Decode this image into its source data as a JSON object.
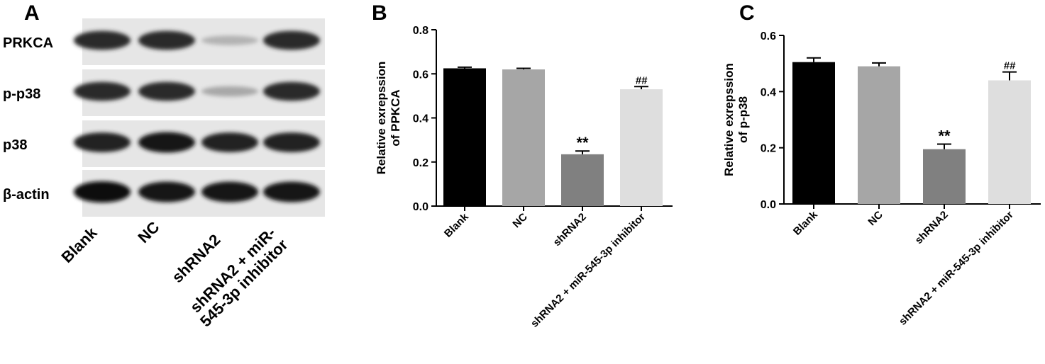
{
  "panels": {
    "a": "A",
    "b": "B",
    "c": "C"
  },
  "blot": {
    "row_labels": [
      "PRKCA",
      "p-p38",
      "p38",
      "β-actin"
    ],
    "lane_labels": [
      "Blank",
      "NC",
      "shRNA2",
      "shRNA2 + miR-\n545-3p inhibitor"
    ],
    "band_intensity": [
      [
        0.85,
        0.85,
        0.25,
        0.85
      ],
      [
        0.85,
        0.85,
        0.3,
        0.85
      ],
      [
        0.9,
        0.95,
        0.9,
        0.9
      ],
      [
        1.0,
        0.95,
        0.95,
        0.95
      ]
    ]
  },
  "chart_data": [
    {
      "type": "bar",
      "categories": [
        "Blank",
        "NC",
        "shRNA2",
        "shRNA2 + miR-545-3p inhibitor"
      ],
      "values": [
        0.625,
        0.62,
        0.235,
        0.53
      ],
      "errors": [
        0.005,
        0.005,
        0.015,
        0.012
      ],
      "annotations": [
        "",
        "",
        "**",
        "##"
      ],
      "bar_colors": [
        "#000000",
        "#a6a6a6",
        "#808080",
        "#dedede"
      ],
      "ylabel": "Relative exrepssion\nof PPKCA",
      "xlabel": "",
      "ylim": [
        0,
        0.8
      ],
      "yticks": [
        "0.0",
        "0.2",
        "0.4",
        "0.6",
        "0.8"
      ],
      "ytick_values": [
        0,
        0.2,
        0.4,
        0.6,
        0.8
      ]
    },
    {
      "type": "bar",
      "categories": [
        "Blank",
        "NC",
        "shRNA2",
        "shRNA2 + miR-545-3p inhibitor"
      ],
      "values": [
        0.505,
        0.49,
        0.195,
        0.44
      ],
      "errors": [
        0.015,
        0.012,
        0.018,
        0.03
      ],
      "annotations": [
        "",
        "",
        "**",
        "##"
      ],
      "bar_colors": [
        "#000000",
        "#a6a6a6",
        "#808080",
        "#dedede"
      ],
      "ylabel": "Relative exrepssion\nof p-p38",
      "xlabel": "",
      "ylim": [
        0,
        0.6
      ],
      "yticks": [
        "0.0",
        "0.2",
        "0.4",
        "0.6"
      ],
      "ytick_values": [
        0,
        0.2,
        0.4,
        0.6
      ]
    }
  ]
}
